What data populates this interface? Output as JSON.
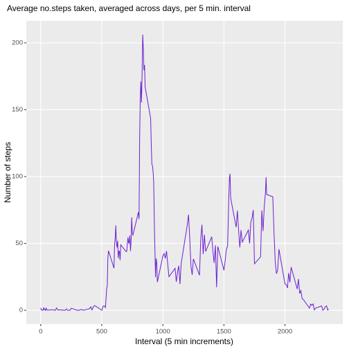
{
  "chart_data": {
    "type": "line",
    "title": "Average no.steps taken, averaged across days, per 5 min. interval",
    "x_label": "Interval (5 min increments)",
    "y_label": "Number of steps",
    "x": [
      0,
      5,
      10,
      15,
      20,
      25,
      30,
      35,
      40,
      45,
      50,
      55,
      100,
      110,
      120,
      130,
      140,
      150,
      200,
      210,
      220,
      230,
      240,
      250,
      300,
      310,
      320,
      330,
      340,
      350,
      400,
      410,
      420,
      430,
      440,
      450,
      500,
      510,
      520,
      530,
      540,
      545,
      550,
      555,
      600,
      605,
      610,
      615,
      620,
      625,
      630,
      635,
      640,
      645,
      650,
      655,
      700,
      705,
      710,
      715,
      720,
      725,
      730,
      735,
      740,
      745,
      750,
      755,
      800,
      805,
      810,
      815,
      820,
      825,
      830,
      835,
      840,
      845,
      850,
      855,
      900,
      905,
      910,
      915,
      920,
      925,
      930,
      935,
      940,
      945,
      950,
      955,
      1000,
      1010,
      1020,
      1030,
      1040,
      1050,
      1100,
      1110,
      1120,
      1130,
      1140,
      1150,
      1200,
      1210,
      1220,
      1230,
      1240,
      1250,
      1300,
      1310,
      1320,
      1330,
      1340,
      1350,
      1400,
      1410,
      1420,
      1430,
      1440,
      1450,
      1500,
      1510,
      1520,
      1530,
      1540,
      1545,
      1550,
      1555,
      1600,
      1610,
      1620,
      1630,
      1640,
      1650,
      1700,
      1710,
      1720,
      1730,
      1740,
      1750,
      1800,
      1810,
      1820,
      1830,
      1840,
      1845,
      1850,
      1900,
      1910,
      1920,
      1930,
      1940,
      1950,
      2000,
      2010,
      2020,
      2030,
      2040,
      2050,
      2100,
      2110,
      2120,
      2130,
      2140,
      2150,
      2200,
      2210,
      2220,
      2230,
      2240,
      2250,
      2300,
      2310,
      2320,
      2330,
      2340,
      2350,
      2355
    ],
    "series": [
      {
        "name": "steps",
        "color": "#6a1fd0",
        "values": [
          1.7,
          0.3,
          0.1,
          0.2,
          0.1,
          2.1,
          0.5,
          0.9,
          0,
          1.5,
          0.3,
          0.1,
          0.4,
          0.2,
          0,
          1.8,
          0.2,
          0.3,
          0,
          1.1,
          0,
          0,
          0,
          1.5,
          0,
          0,
          0.2,
          0.6,
          0.5,
          0,
          1.2,
          2.6,
          0.3,
          2.5,
          3.5,
          3.1,
          0,
          3.0,
          3.3,
          2.1,
          16,
          18.3,
          39.5,
          44.5,
          31.5,
          49.3,
          53.8,
          63.5,
          50,
          47,
          52,
          39,
          44,
          44.2,
          37.4,
          49,
          43.8,
          44.4,
          50.5,
          54.5,
          49.9,
          51,
          56,
          44.3,
          52.3,
          69.5,
          57.8,
          56.2,
          73.4,
          68.2,
          129.4,
          157.5,
          171.2,
          155.4,
          177.3,
          206.2,
          195.9,
          179.6,
          183.4,
          167,
          143.5,
          124,
          109.1,
          108.1,
          103.7,
          96,
          66.2,
          45.2,
          24.8,
          38.8,
          35,
          21.1,
          40.6,
          42.4,
          38.9,
          44.3,
          34.5,
          25.1,
          31.4,
          21.3,
          28.4,
          33.3,
          19.6,
          35.1,
          63.9,
          71.5,
          54,
          32.9,
          26.5,
          38.4,
          26.2,
          53,
          64,
          42,
          56.5,
          44,
          55,
          44,
          35.5,
          48.5,
          17.2,
          47.7,
          30,
          37,
          45.5,
          48.1,
          84.5,
          98.7,
          102.1,
          84,
          62.1,
          74.5,
          60,
          47,
          60,
          51,
          60,
          50,
          66.1,
          68.9,
          75,
          34.8,
          40,
          74.7,
          59.3,
          77.5,
          88,
          99.5,
          86.6,
          84.9,
          58,
          36,
          27.4,
          30.2,
          45.7,
          19.6,
          19.3,
          16.7,
          27.9,
          20.9,
          32.3,
          15.9,
          23.4,
          12.5,
          14.7,
          8.7,
          8.1,
          1.6,
          4.6,
          3.7,
          4.8,
          0.3,
          1.6,
          3.3,
          0,
          1,
          2.6,
          3.3,
          0.2,
          1.1
        ]
      }
    ],
    "xlim": [
      -117.75,
      2472.75
    ],
    "xticks": [
      0,
      500,
      1000,
      1500,
      2000
    ],
    "ylim": [
      -10.3,
      216.5
    ],
    "yticks": [
      0,
      50,
      100,
      150,
      200
    ],
    "grid": true
  }
}
